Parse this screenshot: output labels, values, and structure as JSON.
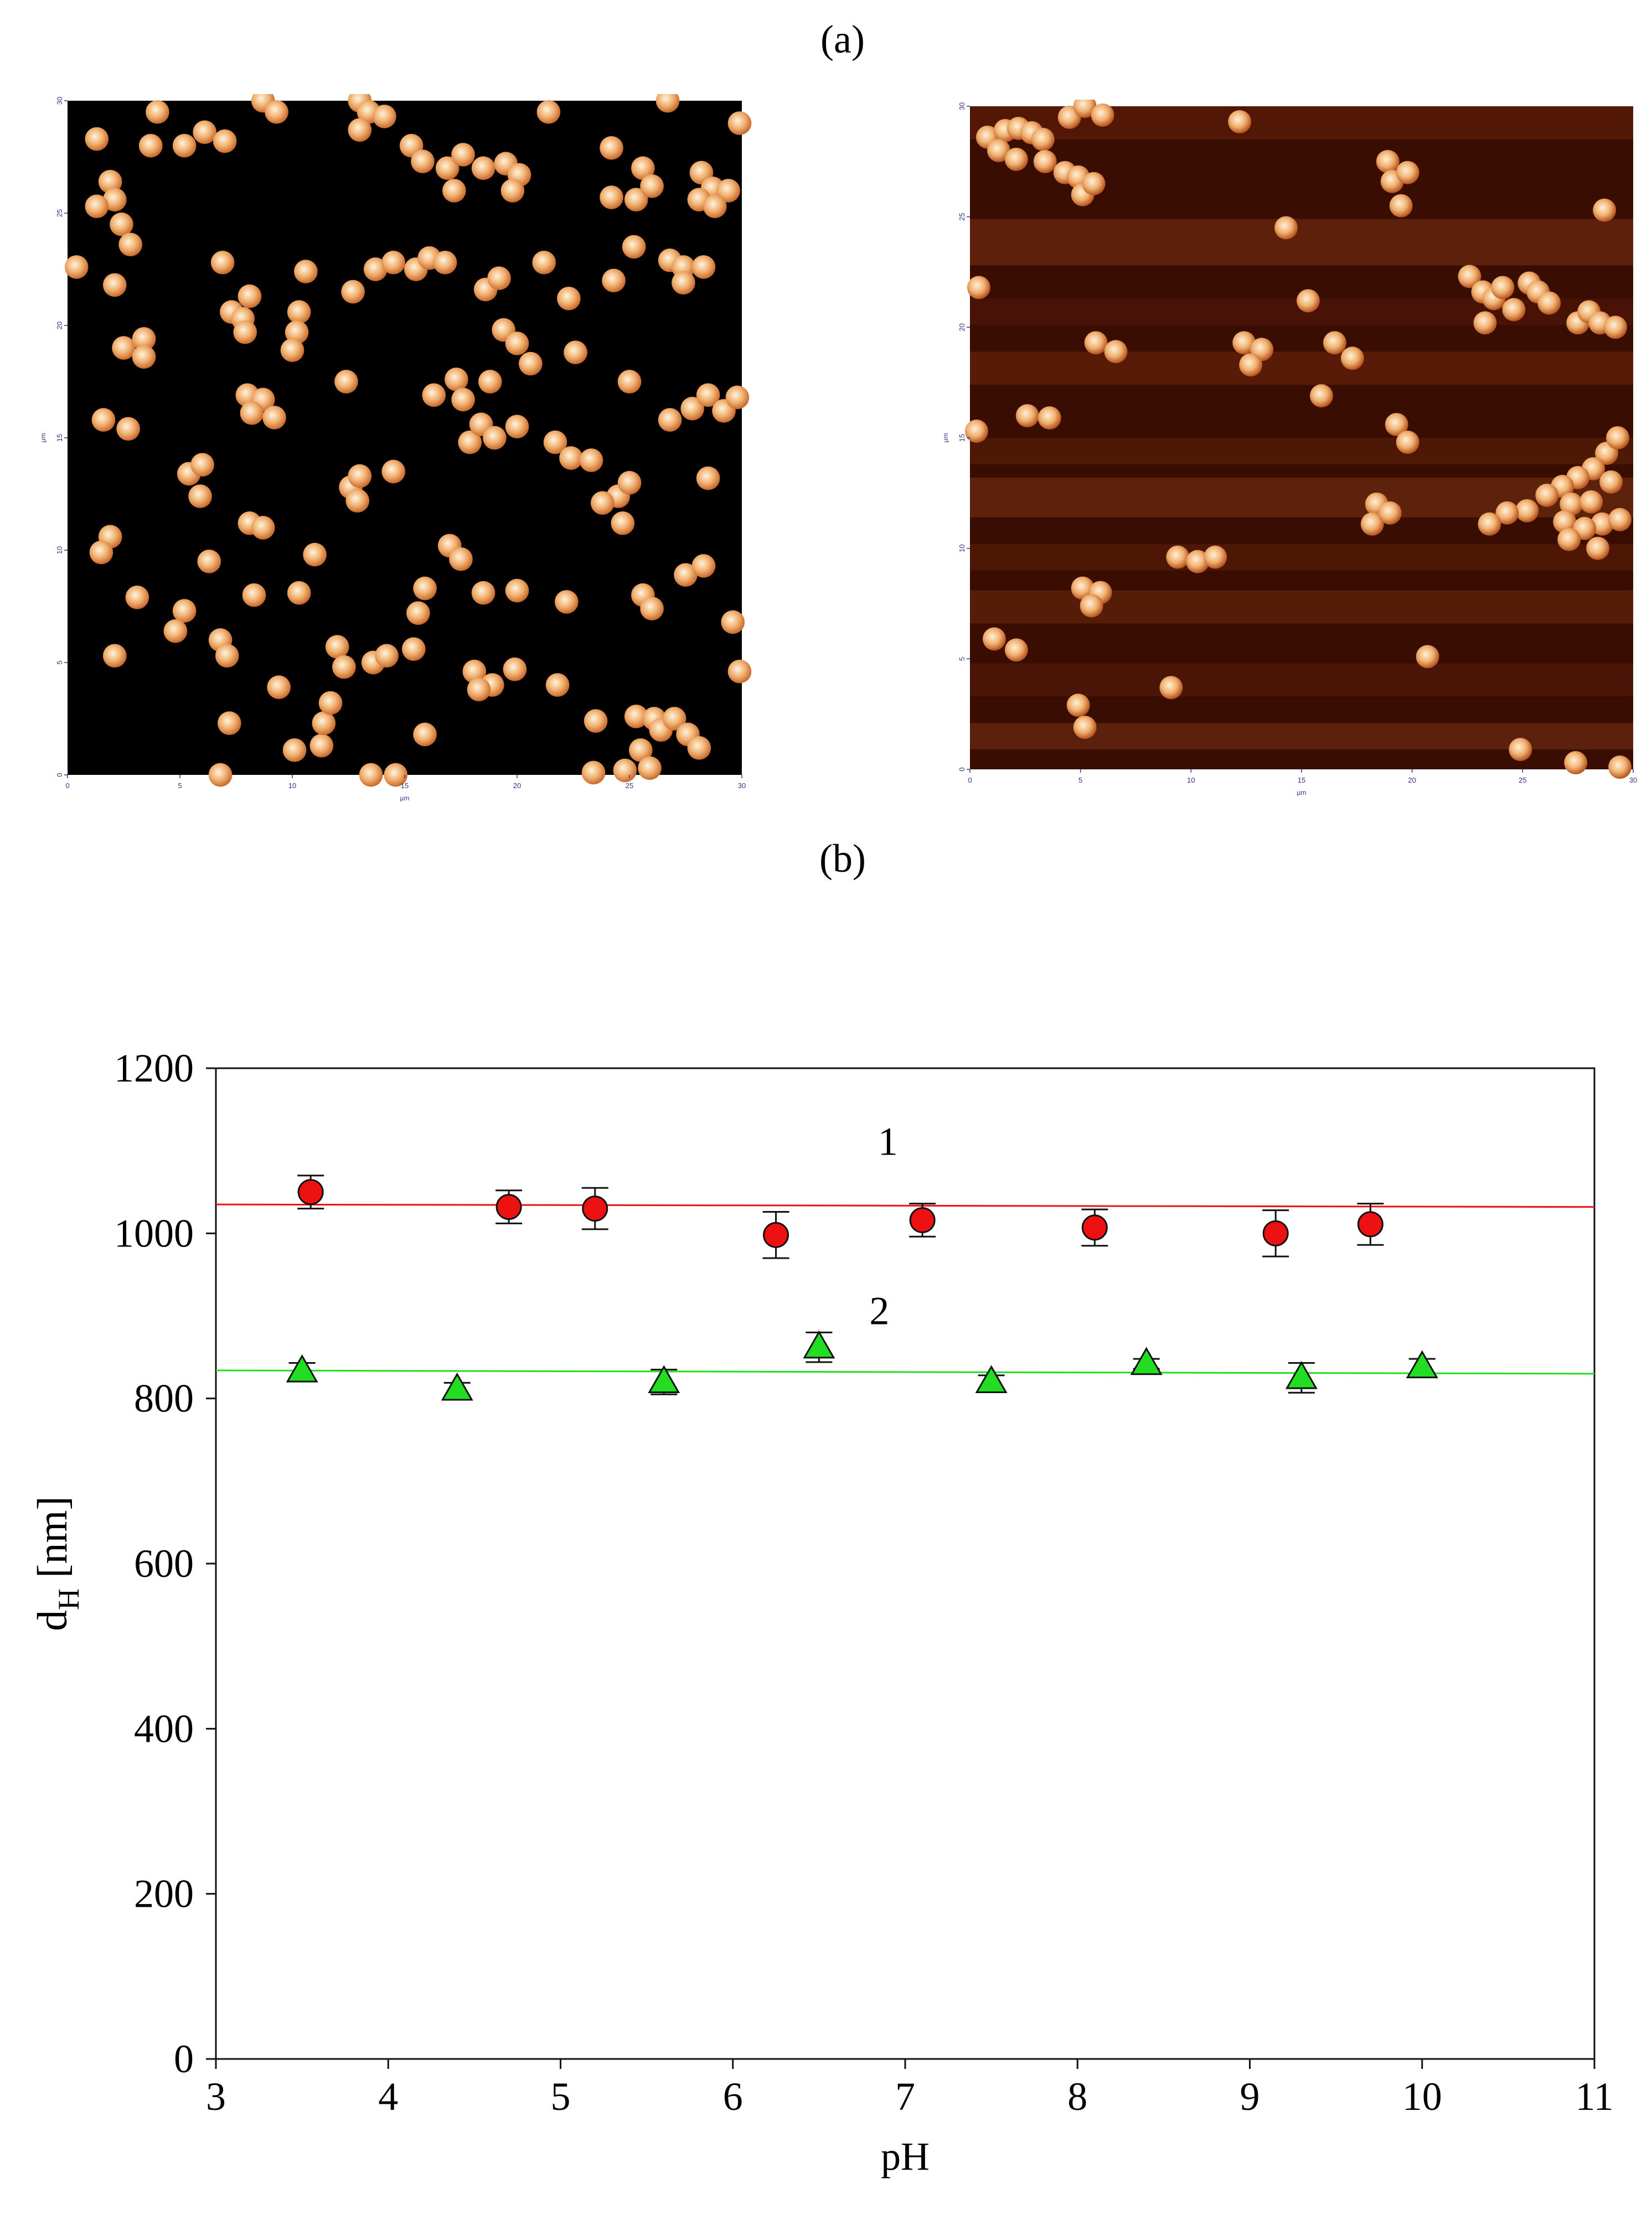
{
  "panel_labels": {
    "a": "(a)",
    "b": "(b)"
  },
  "afm_images": [
    {
      "name": "afm-left",
      "x_unit": "µm",
      "y_unit": "µm",
      "x_ticks": [
        "0",
        "5",
        "10",
        "15",
        "20",
        "25",
        "30"
      ],
      "y_ticks": [
        "0",
        "5",
        "10",
        "15",
        "20",
        "25",
        "30"
      ],
      "colors": {
        "background": "#000000",
        "particle_center": "#fff3dc",
        "particle_edge": "#c86a2c"
      }
    },
    {
      "name": "afm-right",
      "x_unit": "µm",
      "y_unit": "µm",
      "x_ticks": [
        "0",
        "5",
        "10",
        "15",
        "20",
        "25",
        "30"
      ],
      "y_ticks": [
        "0",
        "5",
        "10",
        "15",
        "20",
        "25",
        "30"
      ],
      "colors": {
        "background": "#3a0d02",
        "particle_center": "#fff0d8",
        "particle_edge": "#b5521d"
      }
    }
  ],
  "chart_data": {
    "type": "scatter",
    "title": "",
    "xlabel": "pH",
    "ylabel_main": "d",
    "ylabel_sub": "H",
    "ylabel_unit": "[nm]",
    "xlim": [
      3,
      11
    ],
    "ylim": [
      0,
      1200
    ],
    "x_ticks": [
      3,
      4,
      5,
      6,
      7,
      8,
      9,
      10,
      11
    ],
    "y_ticks": [
      0,
      200,
      400,
      600,
      800,
      1000,
      1200
    ],
    "grid": false,
    "series": [
      {
        "name": "1",
        "marker": "circle",
        "color": "#ee1111",
        "fit_line": [
          [
            3,
            1035
          ],
          [
            11,
            1032
          ]
        ],
        "points": [
          {
            "x": 3.55,
            "y": 1050,
            "err": 20
          },
          {
            "x": 4.7,
            "y": 1032,
            "err": 20
          },
          {
            "x": 5.2,
            "y": 1030,
            "err": 25
          },
          {
            "x": 6.25,
            "y": 998,
            "err": 28
          },
          {
            "x": 7.1,
            "y": 1016,
            "err": 20
          },
          {
            "x": 8.1,
            "y": 1007,
            "err": 22
          },
          {
            "x": 9.15,
            "y": 1000,
            "err": 28
          },
          {
            "x": 9.7,
            "y": 1011,
            "err": 25
          }
        ]
      },
      {
        "name": "2",
        "marker": "triangle",
        "color": "#22dd22",
        "fit_line": [
          [
            3,
            834
          ],
          [
            11,
            830
          ]
        ],
        "points": [
          {
            "x": 3.5,
            "y": 833,
            "err": 10
          },
          {
            "x": 4.4,
            "y": 811,
            "err": 8
          },
          {
            "x": 5.6,
            "y": 820,
            "err": 15
          },
          {
            "x": 6.5,
            "y": 862,
            "err": 18
          },
          {
            "x": 7.5,
            "y": 820,
            "err": 8
          },
          {
            "x": 8.4,
            "y": 842,
            "err": 6
          },
          {
            "x": 9.3,
            "y": 825,
            "err": 18
          },
          {
            "x": 10.0,
            "y": 838,
            "err": 10
          }
        ]
      }
    ]
  }
}
